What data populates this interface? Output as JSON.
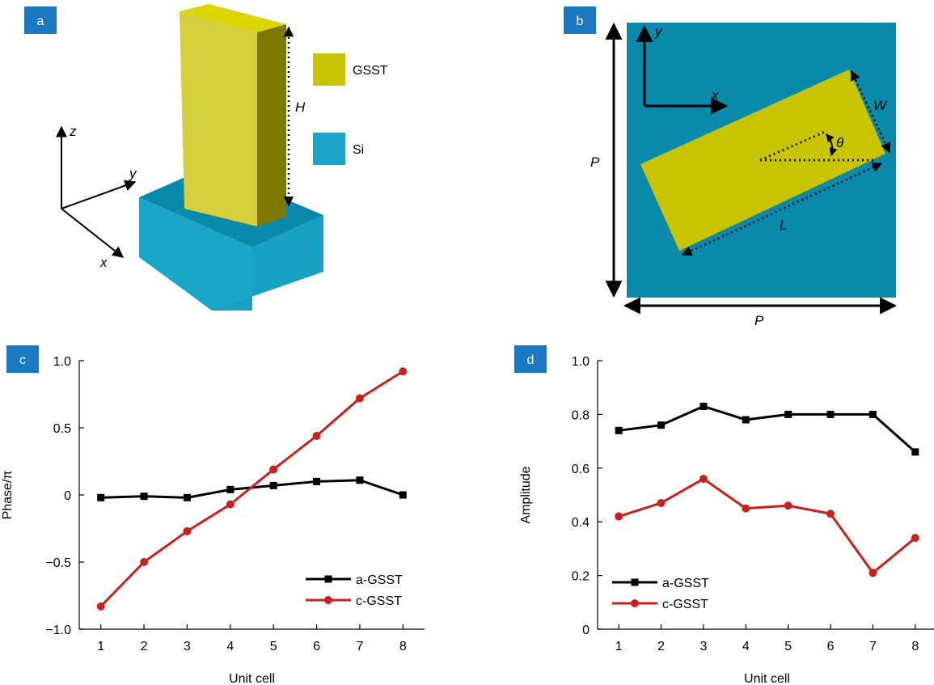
{
  "panels": {
    "a": {
      "label": "a",
      "legend": [
        {
          "name": "GSST",
          "color": "#c8c400"
        },
        {
          "name": "Si",
          "color": "#1aa6c8"
        }
      ],
      "axes": {
        "x": "x",
        "y": "y",
        "z": "z"
      },
      "height_label": "H"
    },
    "b": {
      "label": "b",
      "labels": {
        "x": "x",
        "y": "y",
        "W": "W",
        "L": "L",
        "theta": "θ",
        "P_vertical": "P",
        "P_horizontal": "P"
      }
    },
    "c": {
      "label": "c"
    },
    "d": {
      "label": "d"
    }
  },
  "colors": {
    "badge": "#1b78c2",
    "gsst": "#c8c400",
    "si_dark": "#0a8aaa",
    "a_gsst": "#000000",
    "c_gsst": "#c8201c"
  },
  "chart_data": [
    {
      "type": "line",
      "panel": "c",
      "xlabel": "Unit cell",
      "ylabel": "Phase/π",
      "x": [
        1,
        2,
        3,
        4,
        5,
        6,
        7,
        8
      ],
      "xlim": [
        0.5,
        8.5
      ],
      "ylim": [
        -1.0,
        1.0
      ],
      "yticks": [
        -1.0,
        -0.5,
        0,
        0.5,
        1.0
      ],
      "ytick_labels": [
        "−1.0",
        "−0.5",
        "0",
        "0.5",
        "1.0"
      ],
      "legend_position": "bottom-right",
      "series": [
        {
          "name": "a-GSST",
          "marker": "square",
          "color": "#000000",
          "values": [
            -0.02,
            -0.01,
            -0.02,
            0.04,
            0.07,
            0.1,
            0.11,
            0.0
          ]
        },
        {
          "name": "c-GSST",
          "marker": "circle",
          "color": "#c8201c",
          "values": [
            -0.83,
            -0.5,
            -0.27,
            -0.07,
            0.19,
            0.44,
            0.72,
            0.92
          ]
        }
      ]
    },
    {
      "type": "line",
      "panel": "d",
      "xlabel": "Unit cell",
      "ylabel": "Amplitude",
      "x": [
        1,
        2,
        3,
        4,
        5,
        6,
        7,
        8
      ],
      "xlim": [
        0.5,
        8.5
      ],
      "ylim": [
        0,
        1.0
      ],
      "yticks": [
        0,
        0.2,
        0.4,
        0.6,
        0.8,
        1.0
      ],
      "ytick_labels": [
        "0",
        "0.2",
        "0.4",
        "0.6",
        "0.8",
        "1.0"
      ],
      "legend_position": "bottom-left",
      "series": [
        {
          "name": "a-GSST",
          "marker": "square",
          "color": "#000000",
          "values": [
            0.74,
            0.76,
            0.83,
            0.78,
            0.8,
            0.8,
            0.8,
            0.66
          ]
        },
        {
          "name": "c-GSST",
          "marker": "circle",
          "color": "#c8201c",
          "values": [
            0.42,
            0.47,
            0.56,
            0.45,
            0.46,
            0.43,
            0.21,
            0.34
          ]
        }
      ]
    }
  ]
}
